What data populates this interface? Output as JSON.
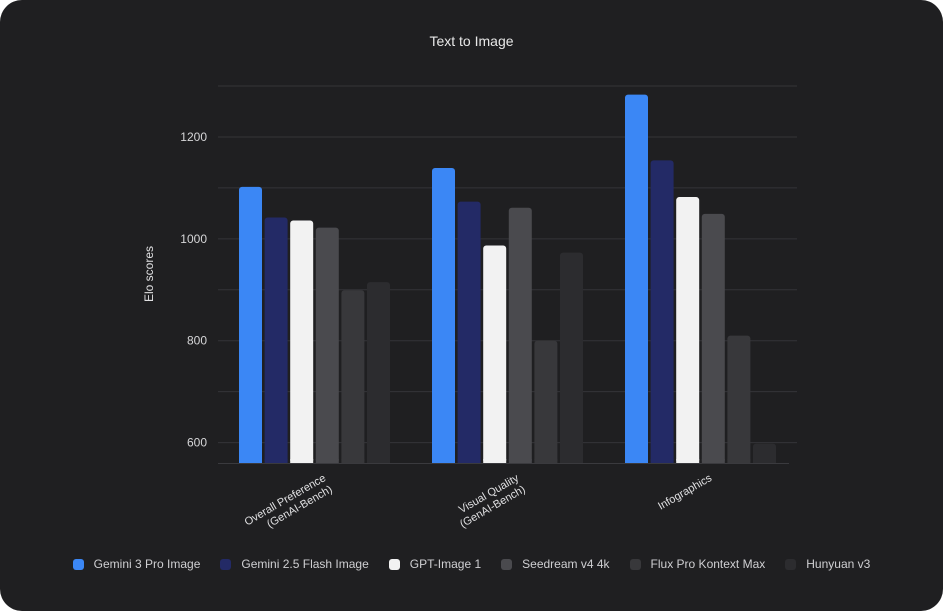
{
  "chart_data": {
    "type": "bar",
    "title": "Text to Image",
    "xlabel": "",
    "ylabel": "Elo scores",
    "ylim": [
      560,
      1300
    ],
    "yticks": [
      600,
      800,
      1000,
      1200
    ],
    "grid": true,
    "legend_position": "bottom",
    "categories": [
      "Overall Preference\n(GenAI-Bench)",
      "Visual Quality\n(GenAI-Bench)",
      "Infographics"
    ],
    "series": [
      {
        "name": "Gemini 3 Pro Image",
        "color": "#3b87f5",
        "values": [
          1102,
          1139,
          1283
        ]
      },
      {
        "name": "Gemini 2.5 Flash Image",
        "color": "#232a66",
        "values": [
          1042,
          1073,
          1154
        ]
      },
      {
        "name": "GPT-Image 1",
        "color": "#f2f2f2",
        "values": [
          1036,
          987,
          1082
        ]
      },
      {
        "name": "Seedream v4 4k",
        "color": "#4a4a4e",
        "values": [
          1022,
          1061,
          1049
        ]
      },
      {
        "name": "Flux Pro Kontext Max",
        "color": "#38383b",
        "values": [
          899,
          800,
          810
        ]
      },
      {
        "name": "Hunyuan v3",
        "color": "#2c2c2f",
        "values": [
          915,
          973,
          598
        ]
      }
    ]
  }
}
